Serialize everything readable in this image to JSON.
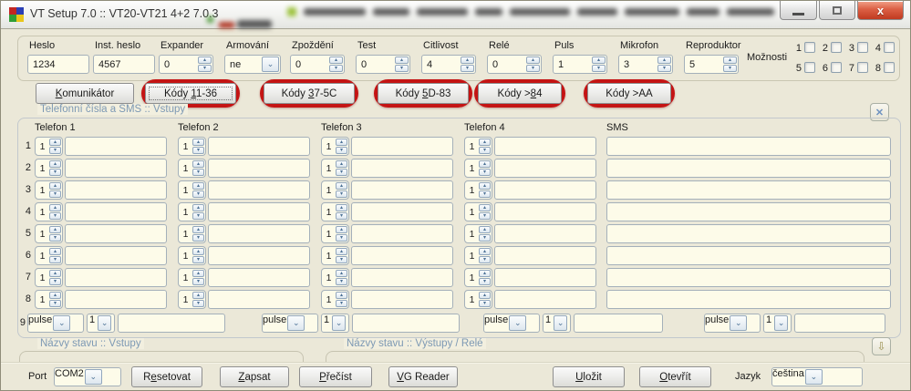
{
  "window": {
    "title": "VT Setup 7.0 :: VT20-VT21 4+2 7.0.3"
  },
  "ui": {
    "dropdown_glyph": "⌄",
    "spin_up_glyph": "▴",
    "spin_down_glyph": "▾",
    "close_glyph": "✕",
    "expand_glyph": "⇩",
    "window_close_glyph": "x"
  },
  "settings": {
    "fields": [
      {
        "label": "Heslo",
        "value": "1234",
        "type": "text"
      },
      {
        "label": "Inst. heslo",
        "value": "4567",
        "type": "text"
      },
      {
        "label": "Expander",
        "value": "0",
        "type": "spinner"
      },
      {
        "label": "Armování",
        "value": "ne",
        "type": "select"
      },
      {
        "label": "Zpoždění",
        "value": "0",
        "type": "spinner"
      },
      {
        "label": "Test",
        "value": "0",
        "type": "spinner"
      },
      {
        "label": "Citlivost",
        "value": "4",
        "type": "spinner"
      },
      {
        "label": "Relé",
        "value": "0",
        "type": "spinner"
      },
      {
        "label": "Puls",
        "value": "1",
        "type": "spinner"
      },
      {
        "label": "Mikrofon",
        "value": "3",
        "type": "spinner"
      },
      {
        "label": "Reproduktor",
        "value": "5",
        "type": "spinner"
      }
    ],
    "moznosti": {
      "label": "Možnosti",
      "row1": [
        "1",
        "2",
        "3",
        "4"
      ],
      "row2": [
        "5",
        "6",
        "7",
        "8"
      ],
      "checked": []
    }
  },
  "tabs": [
    {
      "label": "Komunikátor",
      "mnemonic": 0,
      "highlighted": false,
      "focused": false
    },
    {
      "label": "Kódy 11-36",
      "mnemonic": 5,
      "highlighted": true,
      "focused": true
    },
    {
      "label": "Kódy 37-5C",
      "mnemonic": 5,
      "highlighted": true,
      "focused": false
    },
    {
      "label": "Kódy 5D-83",
      "mnemonic": 5,
      "highlighted": true,
      "focused": false
    },
    {
      "label": "Kódy >84",
      "mnemonic": 6,
      "highlighted": true,
      "focused": false
    },
    {
      "label": "Kódy >AA",
      "mnemonic": -1,
      "highlighted": true,
      "focused": false
    }
  ],
  "phone_panel": {
    "title": "Telefonní čísla a SMS :: Vstupy",
    "columns": [
      "Telefon 1",
      "Telefon 2",
      "Telefon 3",
      "Telefon 4",
      "SMS"
    ],
    "rows": [
      {
        "num": "1",
        "spins": [
          "1",
          "1",
          "1",
          "1"
        ],
        "phones": [
          "",
          "",
          "",
          ""
        ],
        "sms": ""
      },
      {
        "num": "2",
        "spins": [
          "1",
          "1",
          "1",
          "1"
        ],
        "phones": [
          "",
          "",
          "",
          ""
        ],
        "sms": ""
      },
      {
        "num": "3",
        "spins": [
          "1",
          "1",
          "1",
          "1"
        ],
        "phones": [
          "",
          "",
          "",
          ""
        ],
        "sms": ""
      },
      {
        "num": "4",
        "spins": [
          "1",
          "1",
          "1",
          "1"
        ],
        "phones": [
          "",
          "",
          "",
          ""
        ],
        "sms": ""
      },
      {
        "num": "5",
        "spins": [
          "1",
          "1",
          "1",
          "1"
        ],
        "phones": [
          "",
          "",
          "",
          ""
        ],
        "sms": ""
      },
      {
        "num": "6",
        "spins": [
          "1",
          "1",
          "1",
          "1"
        ],
        "phones": [
          "",
          "",
          "",
          ""
        ],
        "sms": ""
      },
      {
        "num": "7",
        "spins": [
          "1",
          "1",
          "1",
          "1"
        ],
        "phones": [
          "",
          "",
          "",
          ""
        ],
        "sms": ""
      },
      {
        "num": "8",
        "spins": [
          "1",
          "1",
          "1",
          "1"
        ],
        "phones": [
          "",
          "",
          "",
          ""
        ],
        "sms": ""
      }
    ],
    "row9": {
      "num": "9",
      "groups": [
        {
          "mode": "pulse",
          "count": "1",
          "text": ""
        },
        {
          "mode": "pulse",
          "count": "1",
          "text": ""
        },
        {
          "mode": "pulse",
          "count": "1",
          "text": ""
        },
        {
          "mode": "pulse",
          "count": "1",
          "text": ""
        }
      ]
    }
  },
  "status_sections": {
    "left_title": "Názvy stavu :: Vstupy",
    "right_title": "Názvy stavu :: Výstupy / Relé"
  },
  "toolbar": {
    "port_label": "Port",
    "port_value": "COM2",
    "left_buttons": [
      {
        "label": "Resetovat",
        "mnemonic": 1
      },
      {
        "label": "Zapsat",
        "mnemonic": 0
      },
      {
        "label": "Přečíst",
        "mnemonic": 0
      },
      {
        "label": "VG Reader",
        "mnemonic": 0
      }
    ],
    "right_buttons": [
      {
        "label": "Uložit",
        "mnemonic": 0
      },
      {
        "label": "Otevřít",
        "mnemonic": 0
      }
    ],
    "jazyk_label": "Jazyk",
    "jazyk_value": "čeština"
  },
  "colors": {
    "annotation_red": "#c41414",
    "section_title_blue": "#7d99b4",
    "input_background": "#fdfbe9",
    "window_background": "#ebe8d8"
  }
}
